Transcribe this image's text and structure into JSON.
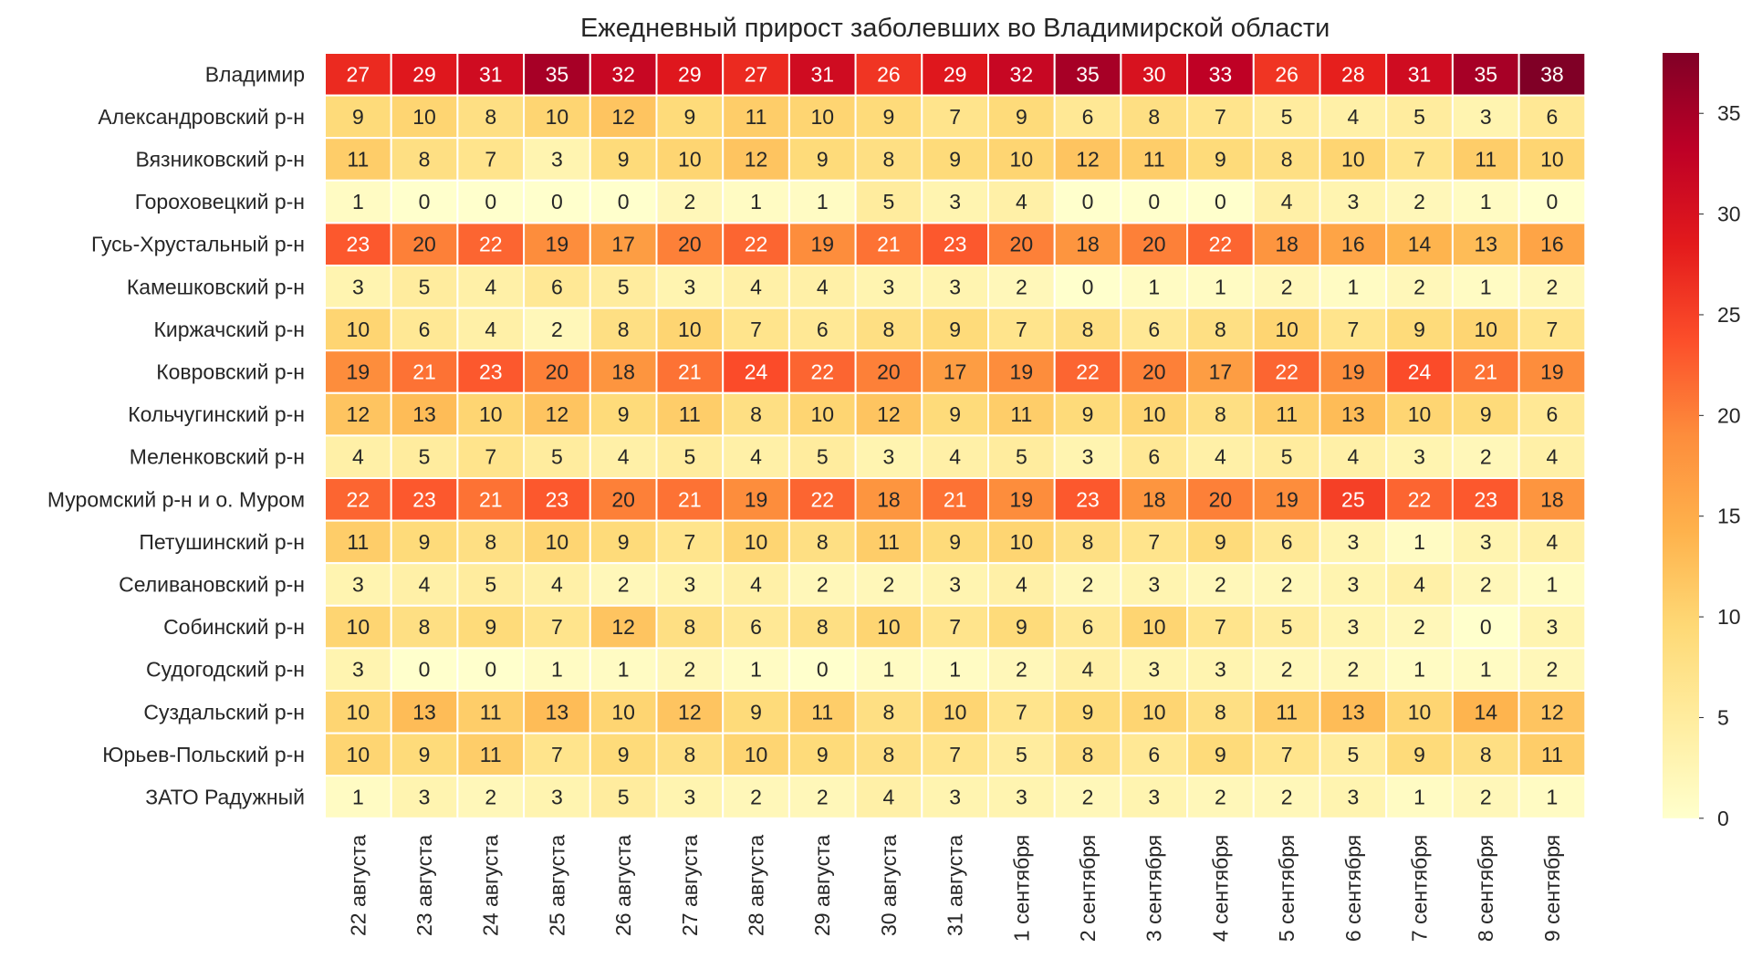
{
  "chart_data": {
    "type": "heatmap",
    "title": "Ежедневный прирост заболевших во Владимирской области",
    "xlabel": "",
    "ylabel": "",
    "rows": [
      "Владимир",
      "Александровский р-н",
      "Вязниковский р-н",
      "Гороховецкий р-н",
      "Гусь-Хрустальный р-н",
      "Камешковский р-н",
      "Киржачский р-н",
      "Ковровский р-н",
      "Кольчугинский р-н",
      "Меленковский р-н",
      "Муромский р-н и о. Муром",
      "Петушинский р-н",
      "Селивановский р-н",
      "Собинский р-н",
      "Судогодский р-н",
      "Суздальский р-н",
      "Юрьев-Польский р-н",
      "ЗАТО Радужный"
    ],
    "columns": [
      "22 августа",
      "23 августа",
      "24 августа",
      "25 августа",
      "26 августа",
      "27 августа",
      "28 августа",
      "29 августа",
      "30 августа",
      "31 августа",
      "1 сентября",
      "2 сентября",
      "3 сентября",
      "4 сентября",
      "5 сентября",
      "6 сентября",
      "7 сентября",
      "8 сентября",
      "9 сентября"
    ],
    "values": [
      [
        27,
        29,
        31,
        35,
        32,
        29,
        27,
        31,
        26,
        29,
        32,
        35,
        30,
        33,
        26,
        28,
        31,
        35,
        38
      ],
      [
        9,
        10,
        8,
        10,
        12,
        9,
        11,
        10,
        9,
        7,
        9,
        6,
        8,
        7,
        5,
        4,
        5,
        3,
        6
      ],
      [
        11,
        8,
        7,
        3,
        9,
        10,
        12,
        9,
        8,
        9,
        10,
        12,
        11,
        9,
        8,
        10,
        7,
        11,
        10
      ],
      [
        1,
        0,
        0,
        0,
        0,
        2,
        1,
        1,
        5,
        3,
        4,
        0,
        0,
        0,
        4,
        3,
        2,
        1,
        0
      ],
      [
        23,
        20,
        22,
        19,
        17,
        20,
        22,
        19,
        21,
        23,
        20,
        18,
        20,
        22,
        18,
        16,
        14,
        13,
        16
      ],
      [
        3,
        5,
        4,
        6,
        5,
        3,
        4,
        4,
        3,
        3,
        2,
        0,
        1,
        1,
        2,
        1,
        2,
        1,
        2
      ],
      [
        10,
        6,
        4,
        2,
        8,
        10,
        7,
        6,
        8,
        9,
        7,
        8,
        6,
        8,
        10,
        7,
        9,
        10,
        7
      ],
      [
        19,
        21,
        23,
        20,
        18,
        21,
        24,
        22,
        20,
        17,
        19,
        22,
        20,
        17,
        22,
        19,
        24,
        21,
        19
      ],
      [
        12,
        13,
        10,
        12,
        9,
        11,
        8,
        10,
        12,
        9,
        11,
        9,
        10,
        8,
        11,
        13,
        10,
        9,
        6
      ],
      [
        4,
        5,
        7,
        5,
        4,
        5,
        4,
        5,
        3,
        4,
        5,
        3,
        6,
        4,
        5,
        4,
        3,
        2,
        4
      ],
      [
        22,
        23,
        21,
        23,
        20,
        21,
        19,
        22,
        18,
        21,
        19,
        23,
        18,
        20,
        19,
        25,
        22,
        23,
        18
      ],
      [
        11,
        9,
        8,
        10,
        9,
        7,
        10,
        8,
        11,
        9,
        10,
        8,
        7,
        9,
        6,
        3,
        1,
        3,
        4
      ],
      [
        3,
        4,
        5,
        4,
        2,
        3,
        4,
        2,
        2,
        3,
        4,
        2,
        3,
        2,
        2,
        3,
        4,
        2,
        1
      ],
      [
        10,
        8,
        9,
        7,
        12,
        8,
        6,
        8,
        10,
        7,
        9,
        6,
        10,
        7,
        5,
        3,
        2,
        0,
        3
      ],
      [
        3,
        0,
        0,
        1,
        1,
        2,
        1,
        0,
        1,
        1,
        2,
        4,
        3,
        3,
        2,
        2,
        1,
        1,
        2
      ],
      [
        10,
        13,
        11,
        13,
        10,
        12,
        9,
        11,
        8,
        10,
        7,
        9,
        10,
        8,
        11,
        13,
        10,
        14,
        12
      ],
      [
        10,
        9,
        11,
        7,
        9,
        8,
        10,
        9,
        8,
        7,
        5,
        8,
        6,
        9,
        7,
        5,
        9,
        8,
        11
      ],
      [
        1,
        3,
        2,
        3,
        5,
        3,
        2,
        2,
        4,
        3,
        3,
        2,
        3,
        2,
        2,
        3,
        1,
        2,
        1
      ]
    ],
    "colormap": "YlOrRd",
    "vmin": 0,
    "vmax": 38,
    "colorbar_ticks": [
      0,
      5,
      10,
      15,
      20,
      25,
      30,
      35
    ],
    "grid": false,
    "colorbar_position": "right"
  }
}
